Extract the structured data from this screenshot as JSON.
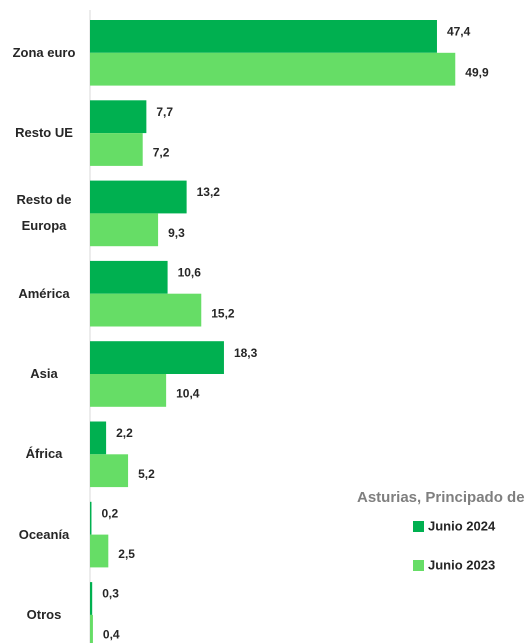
{
  "chart_data": {
    "type": "bar",
    "orientation": "horizontal",
    "categories": [
      "Zona euro",
      "Resto UE",
      "Resto de Europa",
      "América",
      "Asia",
      "África",
      "Oceanía",
      "Otros"
    ],
    "series": [
      {
        "name": "Junio 2024",
        "color": "#00b050",
        "values": [
          47.4,
          7.7,
          13.2,
          10.6,
          18.3,
          2.2,
          0.2,
          0.3
        ],
        "value_labels": [
          "47,4",
          "7,7",
          "13,2",
          "10,6",
          "18,3",
          "2,2",
          "0,2",
          "0,3"
        ]
      },
      {
        "name": "Junio 2023",
        "color": "#66dd66",
        "values": [
          49.9,
          7.2,
          9.3,
          15.2,
          10.4,
          5.2,
          2.5,
          0.4
        ],
        "value_labels": [
          "49,9",
          "7,2",
          "9,3",
          "15,2",
          "10,4",
          "5,2",
          "2,5",
          "0,4"
        ]
      }
    ],
    "legend_title": "Asturias, Principado de",
    "legend": "bottom-right"
  }
}
